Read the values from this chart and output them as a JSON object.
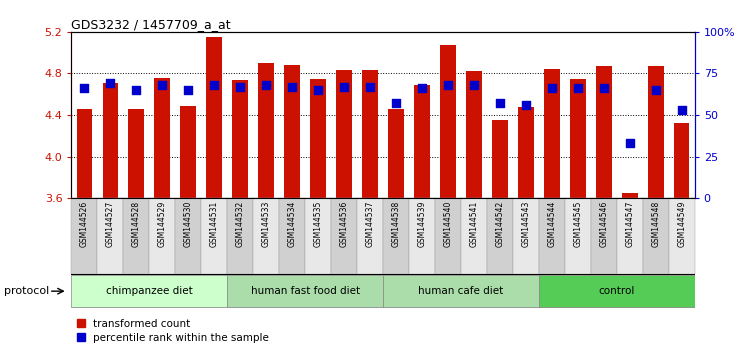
{
  "title": "GDS3232 / 1457709_a_at",
  "samples": [
    "GSM144526",
    "GSM144527",
    "GSM144528",
    "GSM144529",
    "GSM144530",
    "GSM144531",
    "GSM144532",
    "GSM144533",
    "GSM144534",
    "GSM144535",
    "GSM144536",
    "GSM144537",
    "GSM144538",
    "GSM144539",
    "GSM144540",
    "GSM144541",
    "GSM144542",
    "GSM144543",
    "GSM144544",
    "GSM144545",
    "GSM144546",
    "GSM144547",
    "GSM144548",
    "GSM144549"
  ],
  "transformed_count": [
    4.46,
    4.71,
    4.46,
    4.76,
    4.49,
    5.15,
    4.74,
    4.9,
    4.88,
    4.75,
    4.83,
    4.83,
    4.46,
    4.69,
    5.07,
    4.82,
    4.35,
    4.48,
    4.84,
    4.75,
    4.87,
    3.65,
    4.87,
    4.32
  ],
  "percentile_rank": [
    66,
    69,
    65,
    68,
    65,
    68,
    67,
    68,
    67,
    65,
    67,
    67,
    57,
    66,
    68,
    68,
    57,
    56,
    66,
    66,
    66,
    33,
    65,
    53
  ],
  "groups": [
    {
      "label": "chimpanzee diet",
      "start": 0,
      "end": 5,
      "color": "#ccffcc"
    },
    {
      "label": "human fast food diet",
      "start": 6,
      "end": 11,
      "color": "#99ee99"
    },
    {
      "label": "human cafe diet",
      "start": 12,
      "end": 17,
      "color": "#99ee99"
    },
    {
      "label": "control",
      "start": 18,
      "end": 23,
      "color": "#55cc55"
    }
  ],
  "ylim_left": [
    3.6,
    5.2
  ],
  "ylim_right": [
    0,
    100
  ],
  "yticks_left": [
    3.6,
    4.0,
    4.4,
    4.8,
    5.2
  ],
  "yticks_right": [
    0,
    25,
    50,
    75,
    100
  ],
  "ytick_labels_right": [
    "0",
    "25",
    "50",
    "75",
    "100%"
  ],
  "bar_color": "#cc1100",
  "dot_color": "#0000cc",
  "bar_width": 0.6,
  "dot_size": 40,
  "bar_base": 3.6,
  "grid_yticks": [
    4.0,
    4.4,
    4.8
  ],
  "xtick_box_color_odd": "#d0d0d0",
  "xtick_box_color_even": "#e8e8e8"
}
